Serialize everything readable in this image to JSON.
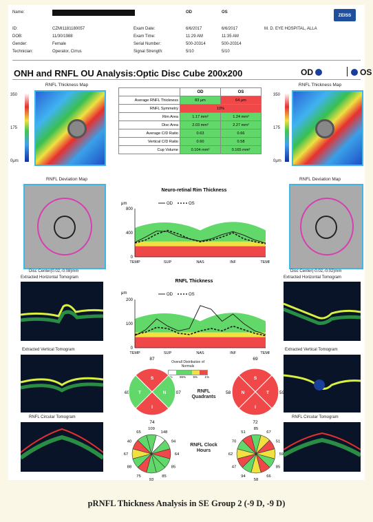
{
  "header": {
    "name_label": "Name:",
    "id_label": "ID:",
    "id_value": "CZMI1181180057",
    "dob_label": "DOB:",
    "dob_value": "11/30/1988",
    "gender_label": "Gender:",
    "gender_value": "Female",
    "tech_label": "Technician:",
    "tech_value": "Operator, Cirrus",
    "col_od": "OD",
    "col_os": "OS",
    "exam_date_label": "Exam Date:",
    "exam_date_od": "6/6/2017",
    "exam_date_os": "6/6/2017",
    "exam_time_label": "Exam Time:",
    "exam_time_od": "11:29 AM",
    "exam_time_os": "11:35 AM",
    "serial_label": "Serial Number:",
    "serial_od": "500-20314",
    "serial_os": "500-20314",
    "signal_label": "Signal Strength:",
    "signal_od": "5/10",
    "signal_os": "5/10",
    "hospital": "M. D. EYE HOSPITAL, ALLA",
    "logo": "ZEISS"
  },
  "title": "ONH and RNFL OU Analysis:Optic Disc Cube 200x200",
  "title_od": "OD",
  "title_os": "OS",
  "colors": {
    "od_circle": "#1a3f9a",
    "green": "#62d86a",
    "red": "#f04848",
    "yellow": "#f0e040",
    "white": "#ffffff"
  },
  "labels": {
    "thickness_map": "RNFL Thickness Map",
    "deviation_map": "RNFL Deviation Map",
    "horiz_tomo": "Extracted Horizontal Tomogram",
    "vert_tomo": "Extracted Vertical Tomogram",
    "circ_tomo": "RNFL Circular Tomogram",
    "disc_center_od": "Disc Center(0.02,-0.08)mm",
    "disc_center_os": "Disc Center(-0.02,-0.02)mm",
    "scale_350": "350",
    "scale_175": "175",
    "scale_0": "0μm",
    "quadrants": "RNFL Quadrants",
    "clock": "RNFL Clock Hours",
    "distribution_title": "Overall Distribution of Normals",
    "dist_ticks": [
      "5%",
      "95%",
      "5%",
      "1%"
    ]
  },
  "table": {
    "headers": [
      "",
      "OD",
      "OS"
    ],
    "rows": [
      {
        "name": "Average RNFL Thickness",
        "od": "83 μm",
        "os": "64 μm",
        "od_c": "g",
        "os_c": "r"
      },
      {
        "name": "RNFL Symmetry",
        "od": "10%",
        "os": "",
        "od_c": "r",
        "os_c": "r",
        "span": true
      },
      {
        "name": "Rim Area",
        "od": "1.17 mm²",
        "os": "1.24 mm²",
        "od_c": "g",
        "os_c": "g"
      },
      {
        "name": "Disc Area",
        "od": "2.03 mm²",
        "os": "2.27 mm²",
        "od_c": "g",
        "os_c": "g"
      },
      {
        "name": "Average C/D Ratio",
        "od": "0.63",
        "os": "0.66",
        "od_c": "g",
        "os_c": "g"
      },
      {
        "name": "Vertical C/D Ratio",
        "od": "0.60",
        "os": "0.58",
        "od_c": "g",
        "os_c": "g"
      },
      {
        "name": "Cup Volume",
        "od": "0.104 mm³",
        "os": "0.165 mm³",
        "od_c": "g",
        "os_c": "g"
      }
    ]
  },
  "chart_data": [
    {
      "type": "line",
      "title": "Neuro-retinal Rim Thickness",
      "ylabel": "μm",
      "yticks": [
        "800",
        "400",
        "0"
      ],
      "ylim": [
        0,
        800
      ],
      "xticks": [
        "TEMP",
        "SUP",
        "NAS",
        "INF",
        "TEMP"
      ],
      "series": [
        {
          "name": "OD",
          "values": [
            240,
            330,
            430,
            420,
            340,
            300,
            260,
            300,
            370,
            420,
            360,
            280,
            230
          ]
        },
        {
          "name": "OS",
          "values": [
            230,
            280,
            380,
            440,
            380,
            300,
            250,
            280,
            330,
            400,
            300,
            250,
            220
          ]
        }
      ]
    },
    {
      "type": "line",
      "title": "RNFL Thickness",
      "ylabel": "μm",
      "yticks": [
        "200",
        "100",
        "0"
      ],
      "ylim": [
        0,
        200
      ],
      "xticks": [
        "TEMP",
        "SUP",
        "NAS",
        "INF",
        "TEMP"
      ],
      "series": [
        {
          "name": "OD",
          "values": [
            50,
            75,
            120,
            90,
            70,
            80,
            175,
            160,
            110,
            140,
            100,
            70,
            55
          ]
        },
        {
          "name": "OS",
          "values": [
            55,
            65,
            85,
            80,
            60,
            55,
            70,
            80,
            70,
            90,
            75,
            60,
            50
          ]
        }
      ]
    }
  ],
  "quadrants": {
    "od": {
      "top": "87",
      "left": "65",
      "right": "107",
      "bottom": "74",
      "letters": [
        "S",
        "T",
        "N",
        "I"
      ]
    },
    "os": {
      "top": "69",
      "left": "58",
      "right": "59",
      "bottom": "72",
      "letters": [
        "S",
        "N",
        "T",
        "I"
      ]
    }
  },
  "clock": {
    "od": [
      "109",
      "148",
      "94",
      "64",
      "85",
      "85",
      "93",
      "75",
      "88",
      "67",
      "40",
      "65"
    ],
    "os": [
      "85",
      "67",
      "51",
      "59",
      "85",
      "66",
      "58",
      "94",
      "47",
      "62",
      "70",
      "51"
    ]
  },
  "caption": "pRNFL Thickness Analysis in SE Group 2 (-9 D, -9 D)"
}
